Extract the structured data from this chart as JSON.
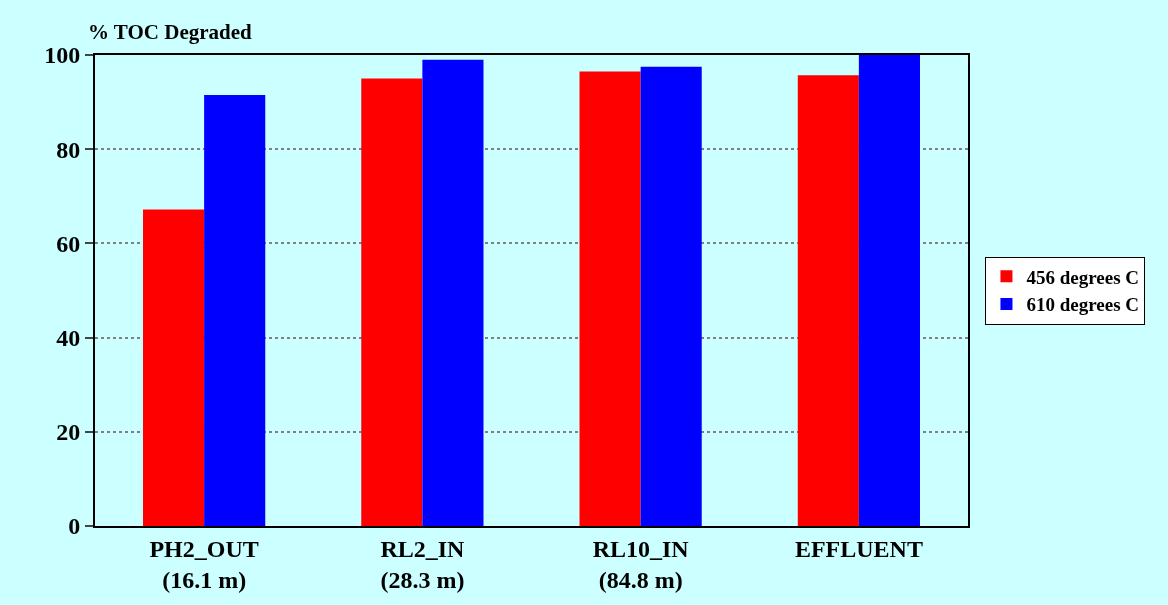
{
  "chart_data": {
    "type": "bar",
    "ylabel": "% TOC Degraded",
    "categories": [
      "PH2_OUT\n(16.1 m)",
      "RL2_IN\n(28.3 m)",
      "RL10_IN\n(84.8 m)",
      "EFFLUENT"
    ],
    "series": [
      {
        "name": "456 degrees C",
        "color": "#ff0000",
        "values": [
          67.2,
          95.0,
          96.5,
          95.7
        ]
      },
      {
        "name": "610 degrees C",
        "color": "#0000ff",
        "values": [
          91.5,
          99.0,
          97.5,
          100
        ]
      }
    ],
    "ylim": [
      0,
      100
    ],
    "yticks": [
      0,
      20,
      40,
      60,
      80,
      100
    ],
    "grid": "y",
    "legend": "right"
  }
}
